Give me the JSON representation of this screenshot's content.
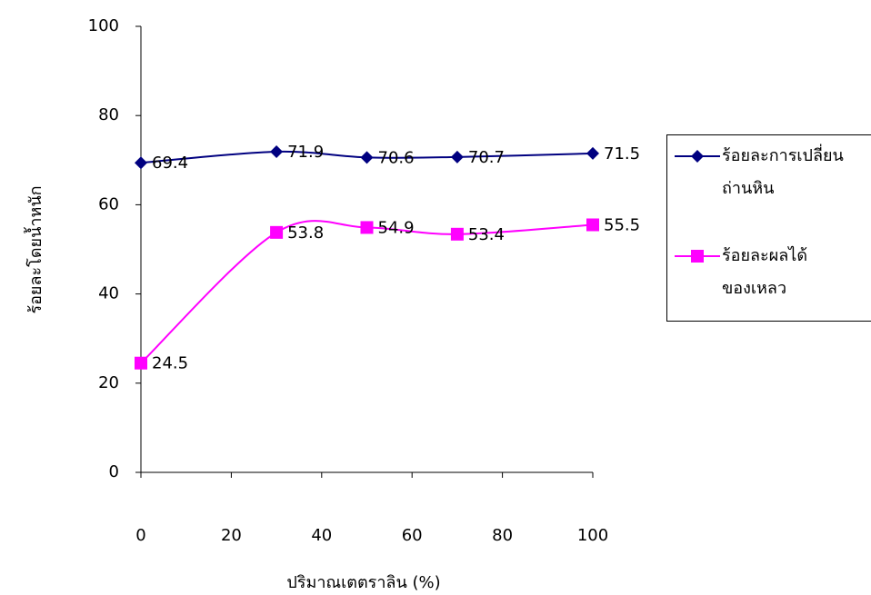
{
  "chart_data": {
    "type": "line",
    "x": [
      0,
      30,
      50,
      70,
      100
    ],
    "series": [
      {
        "name": "ร้อยละการเปลี่ยนถ่านหิน",
        "color": "#000080",
        "marker": "diamond",
        "values": [
          69.4,
          71.9,
          70.6,
          70.7,
          71.5
        ]
      },
      {
        "name": "ร้อยละผลได้ของเหลว",
        "color": "#ff00ff",
        "marker": "square",
        "values": [
          24.5,
          53.8,
          54.9,
          53.4,
          55.5
        ]
      }
    ],
    "xlabel": "ปริมาณเตตราลิน (%)",
    "ylabel": "ร้อยละโดยน้ำหนัก",
    "xlim": [
      0,
      100
    ],
    "xticks": [
      0,
      20,
      40,
      60,
      80,
      100
    ],
    "ylim": [
      0,
      100
    ],
    "yticks": [
      0,
      20,
      40,
      60,
      80,
      100
    ],
    "smooth": true,
    "legend": "right"
  }
}
